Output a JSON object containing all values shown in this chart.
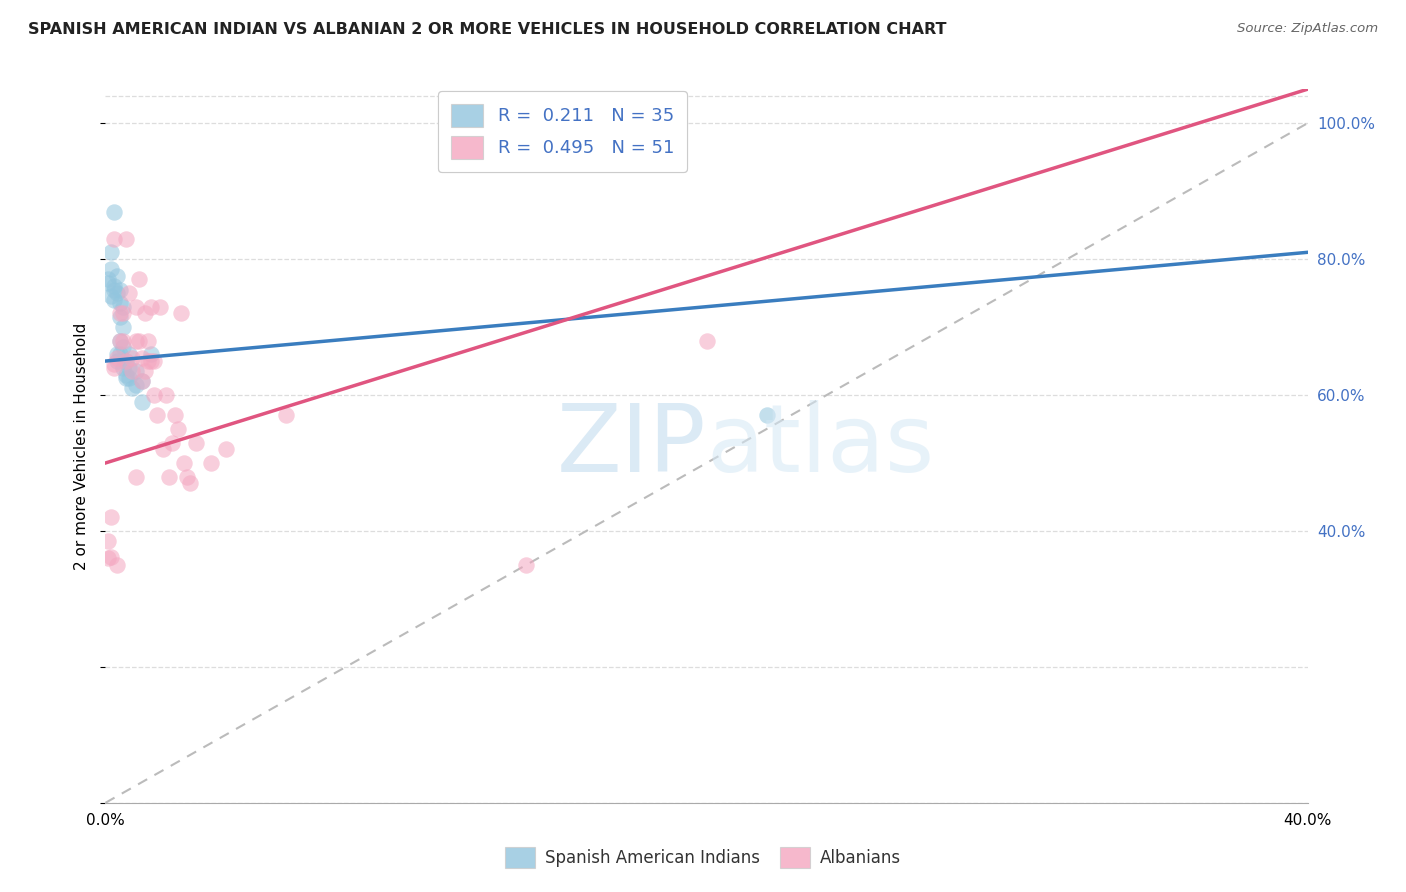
{
  "title": "SPANISH AMERICAN INDIAN VS ALBANIAN 2 OR MORE VEHICLES IN HOUSEHOLD CORRELATION CHART",
  "source": "Source: ZipAtlas.com",
  "ylabel": "2 or more Vehicles in Household",
  "xlim": [
    0.0,
    0.4
  ],
  "ylim": [
    0.0,
    1.05
  ],
  "ytick_vals": [
    0.0,
    0.2,
    0.4,
    0.6,
    0.8,
    1.0
  ],
  "xtick_vals": [
    0.0,
    0.05,
    0.1,
    0.15,
    0.2,
    0.25,
    0.3,
    0.35,
    0.4
  ],
  "xtick_labels": [
    "0.0%",
    "",
    "",
    "",
    "",
    "",
    "",
    "",
    "40.0%"
  ],
  "right_ytick_labels": [
    "",
    "",
    "40.0%",
    "60.0%",
    "80.0%",
    "100.0%"
  ],
  "blue_color": "#92c5de",
  "pink_color": "#f4a6c0",
  "blue_line_color": "#3a7dbf",
  "pink_line_color": "#e05580",
  "diagonal_color": "#bbbbbb",
  "grid_color": "#dddddd",
  "watermark_zip": "ZIP",
  "watermark_atlas": "atlas",
  "legend1_text": "R =  0.211   N = 35",
  "legend2_text": "R =  0.495   N = 51",
  "legend_text_color": "#4472c4",
  "right_tick_color": "#4472c4",
  "blue_x": [
    0.001,
    0.002,
    0.002,
    0.003,
    0.003,
    0.003,
    0.004,
    0.004,
    0.005,
    0.005,
    0.005,
    0.005,
    0.006,
    0.006,
    0.006,
    0.007,
    0.007,
    0.008,
    0.008,
    0.009,
    0.01,
    0.01,
    0.012,
    0.012,
    0.015,
    0.001,
    0.002,
    0.003,
    0.004,
    0.004,
    0.005,
    0.006,
    0.007,
    0.008,
    0.22
  ],
  "blue_y": [
    0.765,
    0.785,
    0.745,
    0.755,
    0.74,
    0.76,
    0.775,
    0.75,
    0.755,
    0.735,
    0.715,
    0.68,
    0.73,
    0.7,
    0.67,
    0.65,
    0.63,
    0.66,
    0.625,
    0.61,
    0.635,
    0.615,
    0.62,
    0.59,
    0.66,
    0.77,
    0.81,
    0.87,
    0.65,
    0.66,
    0.66,
    0.64,
    0.625,
    0.64,
    0.57
  ],
  "pink_x": [
    0.001,
    0.001,
    0.002,
    0.002,
    0.003,
    0.003,
    0.004,
    0.005,
    0.005,
    0.006,
    0.006,
    0.007,
    0.007,
    0.008,
    0.009,
    0.009,
    0.01,
    0.01,
    0.011,
    0.011,
    0.012,
    0.012,
    0.013,
    0.013,
    0.014,
    0.014,
    0.015,
    0.015,
    0.016,
    0.016,
    0.017,
    0.018,
    0.019,
    0.02,
    0.021,
    0.022,
    0.023,
    0.024,
    0.025,
    0.026,
    0.027,
    0.028,
    0.03,
    0.035,
    0.04,
    0.06,
    0.14,
    0.2,
    0.003,
    0.004,
    0.01
  ],
  "pink_y": [
    0.385,
    0.36,
    0.42,
    0.362,
    0.645,
    0.64,
    0.655,
    0.72,
    0.68,
    0.72,
    0.68,
    0.65,
    0.83,
    0.75,
    0.635,
    0.655,
    0.73,
    0.68,
    0.77,
    0.68,
    0.655,
    0.62,
    0.72,
    0.635,
    0.68,
    0.65,
    0.73,
    0.65,
    0.65,
    0.6,
    0.57,
    0.73,
    0.52,
    0.6,
    0.48,
    0.53,
    0.57,
    0.55,
    0.72,
    0.5,
    0.48,
    0.47,
    0.53,
    0.5,
    0.52,
    0.57,
    0.35,
    0.68,
    0.83,
    0.35,
    0.48
  ]
}
